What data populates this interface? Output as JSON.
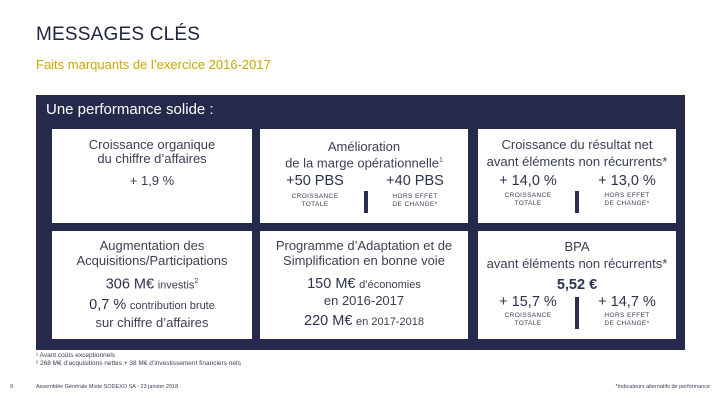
{
  "header": {
    "title": "MESSAGES CLÉS",
    "subtitle": "Faits marquants de l’exercice 2016-2017"
  },
  "panel": {
    "heading": "Une performance solide :",
    "row1": {
      "box1": {
        "line1": "Croissance organique",
        "line2": "du chiffre d’affaires",
        "value": "+ 1,9 %"
      },
      "box2": {
        "line1": "Amélioration",
        "line2": "de la marge opérationnelle",
        "line2_sup": "1",
        "value_left": "+50 PBS",
        "value_right": "+40 PBS",
        "label_left_1": "CROISSANCE",
        "label_left_2": "TOTALE",
        "label_right_1": "HORS EFFET",
        "label_right_2": "DE CHANGE*"
      },
      "box3": {
        "line1": "Croissance du résultat net",
        "line2": "avant éléments non récurrents*",
        "value_left": "+ 14,0 %",
        "value_right": "+ 13,0 %",
        "label_left_1": "CROISSANCE",
        "label_left_2": "TOTALE",
        "label_right_1": "HORS EFFET",
        "label_right_2": "DE CHANGE*"
      }
    },
    "row2": {
      "box1": {
        "line1": "Augmentation des",
        "line2": "Acquisitions/Participations",
        "value1": "306 M€",
        "value1_suffix": "investis",
        "value1_sup": "2",
        "value2": "0,7 %",
        "value2_suffix": "contribution brute",
        "value2_line2": "sur chiffre d’affaires"
      },
      "box2": {
        "line1": "Programme d’Adaptation et de",
        "line2": "Simplification en bonne voie",
        "value1": "150 M€",
        "value1_suffix": "d’économies",
        "value1_line2": "en 2016-2017",
        "value2": "220 M€",
        "value2_suffix": "en 2017-2018"
      },
      "box3": {
        "line1": "BPA",
        "line2": "avant éléments non récurrents*",
        "value_top": "5,52 €",
        "value_left": "+ 15,7 %",
        "value_right": "+ 14,7 %",
        "label_left_1": "CROISSANCE",
        "label_left_2": "TOTALE",
        "label_right_1": "HORS EFFET",
        "label_right_2": "DE CHANGE*"
      }
    }
  },
  "footnotes": {
    "note1": "¹ Avant coûts exceptionnels",
    "note2": "² 268 M€ d’acquisitions nettes + 38 M€ d’investissement financiers nets"
  },
  "footer": {
    "page_number": "9",
    "event": "Assemblée Générale Mixte SODEXO SA - 23 janvier 2018",
    "indicator_note": "*Indicateurs alternatifs de performance"
  }
}
